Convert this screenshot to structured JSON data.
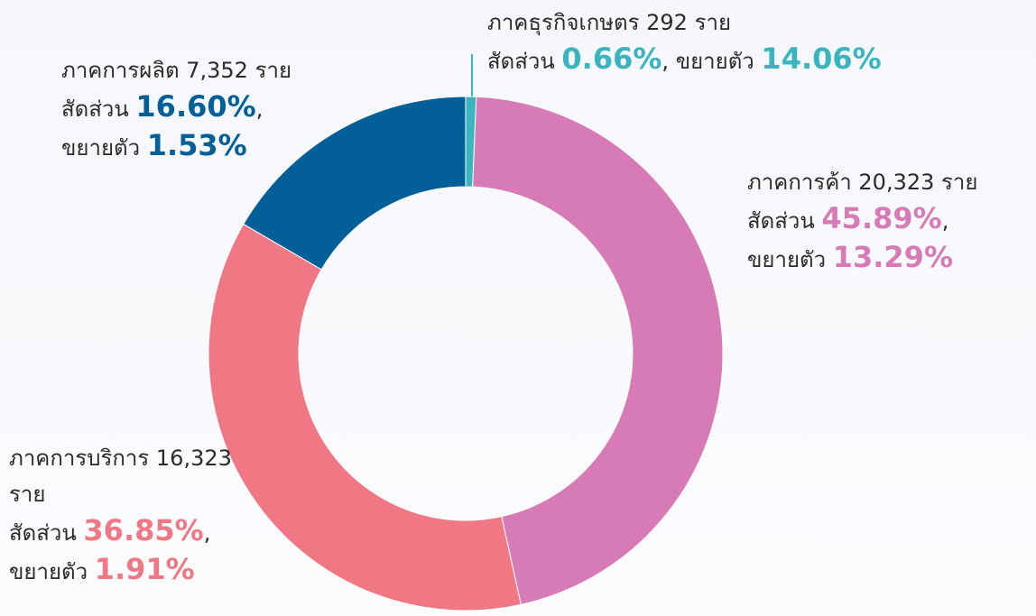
{
  "chart_data": {
    "type": "pie",
    "categories": [
      "ภาคธุรกิจเกษตร 292 ราย",
      "ภาคการค้า 20,323 ราย",
      "ภาคการบริการ 16,323 ราย",
      "ภาคการผลิต 7,352 ราย"
    ],
    "values": [
      0.66,
      45.89,
      36.85,
      16.6
    ],
    "value_labels": [
      "0.66%",
      "45.89%",
      "36.85%",
      "16.60%"
    ],
    "growth_labels": [
      "14.06%",
      "13.29%",
      "1.91%",
      "1.53%"
    ],
    "colors": [
      "#3ab4bf",
      "#d67bb6",
      "#f07884",
      "#035f98"
    ],
    "share_label": "สัดส่วน",
    "growth_label": "ขยายตัว",
    "separator": ","
  }
}
